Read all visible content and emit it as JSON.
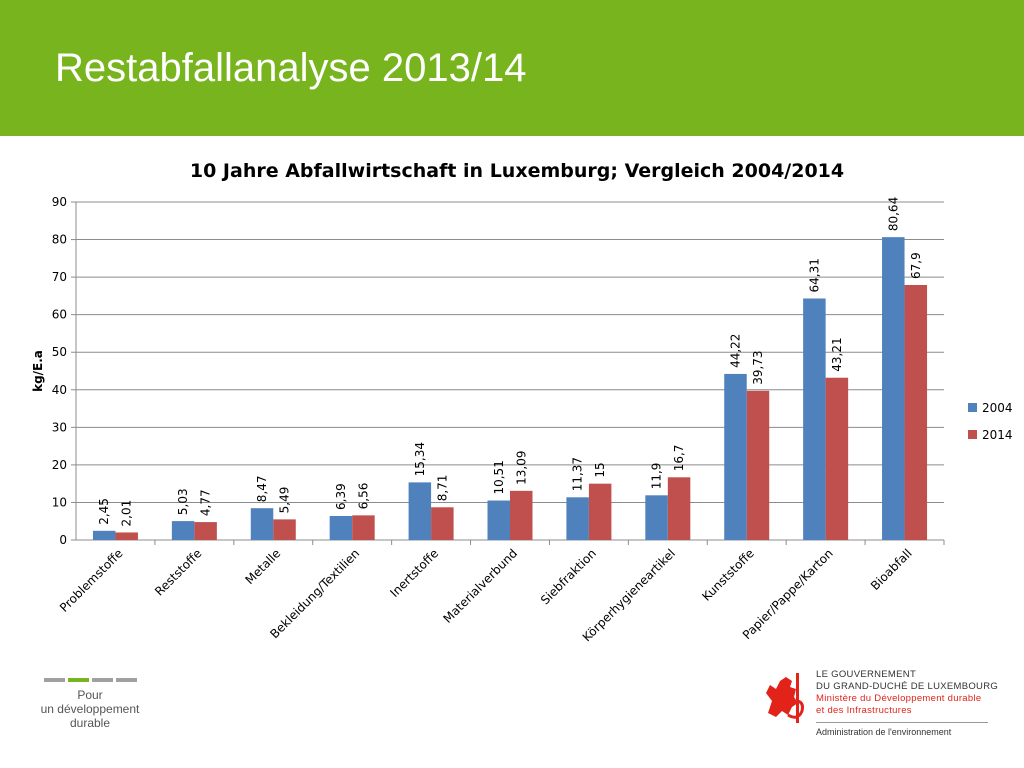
{
  "header": {
    "title": "Restabfallanalyse 2013/14"
  },
  "colors": {
    "header_bg": "#78b41e",
    "series_2004": "#4f81bd",
    "series_2014": "#c0504d",
    "logo_red": "#e2231a"
  },
  "chart_data": {
    "type": "bar",
    "title": "10 Jahre Abfallwirtschaft in Luxemburg; Vergleich 2004/2014",
    "xlabel": "",
    "ylabel": "kg/E.a",
    "ylim": [
      0,
      90
    ],
    "yticks": [
      0,
      10,
      20,
      30,
      40,
      50,
      60,
      70,
      80,
      90
    ],
    "grid": true,
    "legend": "right",
    "categories": [
      "Problemstoffe",
      "Reststoffe",
      "Metalle",
      "Bekleidung/Textilien",
      "Inertstoffe",
      "Materialverbund",
      "Siebfraktion",
      "Körperhygieneartikel",
      "Kunststoffe",
      "Papier/Pappe/Karton",
      "Bioabfall"
    ],
    "series": [
      {
        "name": "2004",
        "color": "#4f81bd",
        "values": [
          2.45,
          5.03,
          8.47,
          6.39,
          15.34,
          10.51,
          11.37,
          11.9,
          44.22,
          64.31,
          80.64
        ],
        "labels": [
          "2,45",
          "5,03",
          "8,47",
          "6,39",
          "15,34",
          "10,51",
          "11,37",
          "11,9",
          "44,22",
          "64,31",
          "80,64"
        ]
      },
      {
        "name": "2014",
        "color": "#c0504d",
        "values": [
          2.01,
          4.77,
          5.49,
          6.56,
          8.71,
          13.09,
          15,
          16.7,
          39.73,
          43.21,
          67.9
        ],
        "labels": [
          "2,01",
          "4,77",
          "5,49",
          "6,56",
          "8,71",
          "13,09",
          "15",
          "16,7",
          "39,73",
          "43,21",
          "67,9"
        ]
      }
    ]
  },
  "footer": {
    "slogan_line1": "Pour",
    "slogan_line2": "un développement",
    "slogan_line3": "durable",
    "gov_line1": "LE GOUVERNEMENT",
    "gov_line2": "DU GRAND-DUCHÉ DE LUXEMBOURG",
    "gov_line3": "Ministère du Développement durable",
    "gov_line4": "et des Infrastructures",
    "admin": "Administration de l'environnement"
  }
}
